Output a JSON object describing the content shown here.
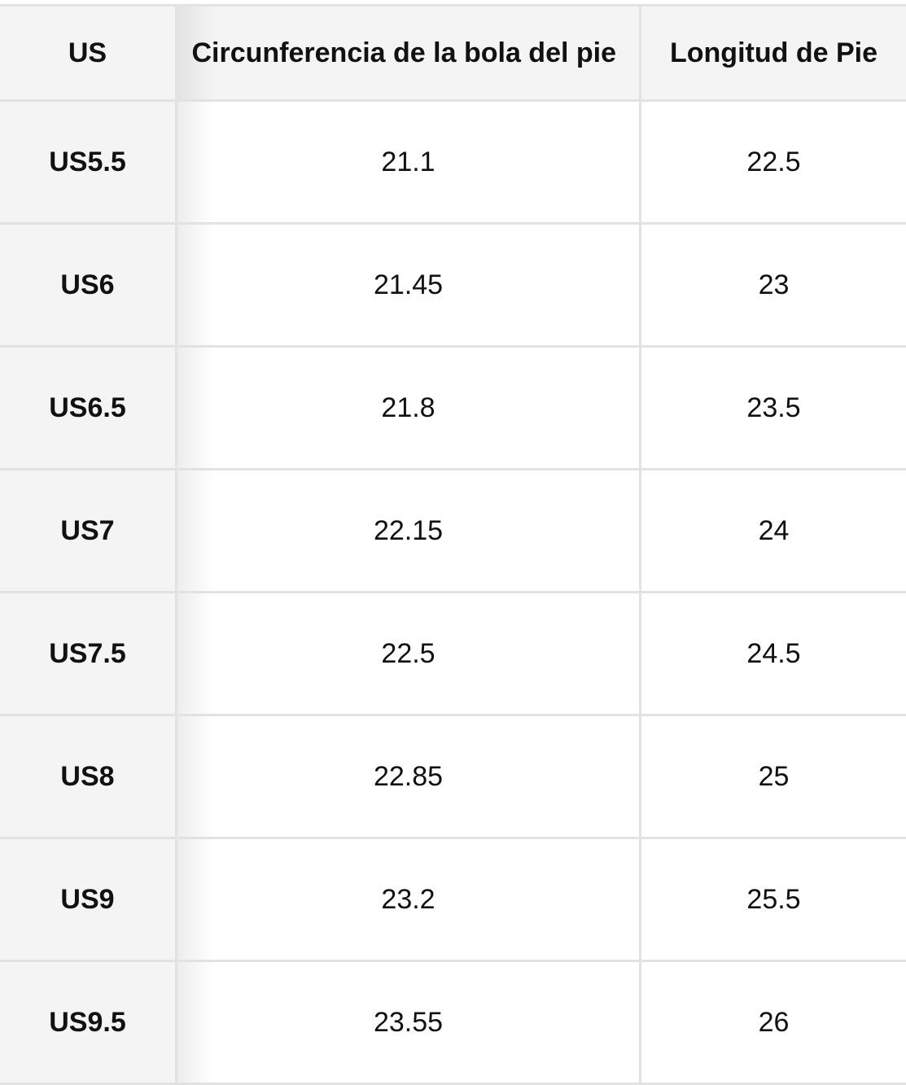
{
  "headers": [
    "US",
    "Circunferencia de la bola del pie",
    "Longitud de Pie"
  ],
  "rows": [
    {
      "us": "US5.5",
      "ball": "21.1",
      "length": "22.5"
    },
    {
      "us": "US6",
      "ball": "21.45",
      "length": "23"
    },
    {
      "us": "US6.5",
      "ball": "21.8",
      "length": "23.5"
    },
    {
      "us": "US7",
      "ball": "22.15",
      "length": "24"
    },
    {
      "us": "US7.5",
      "ball": "22.5",
      "length": "24.5"
    },
    {
      "us": "US8",
      "ball": "22.85",
      "length": "25"
    },
    {
      "us": "US9",
      "ball": "23.2",
      "length": "25.5"
    },
    {
      "us": "US9.5",
      "ball": "23.55",
      "length": "26"
    }
  ]
}
